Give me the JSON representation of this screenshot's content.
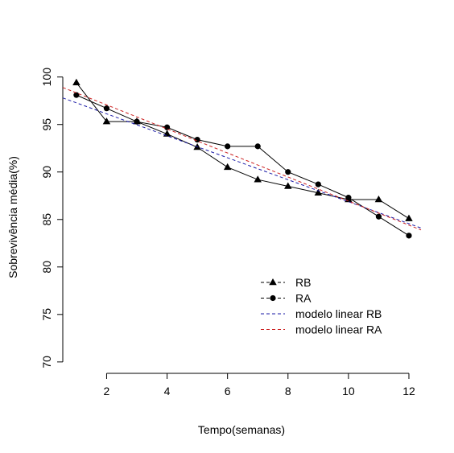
{
  "chart_data": {
    "type": "line",
    "title": "",
    "xlabel": "Tempo(semanas)",
    "ylabel": "Sobrevivência média(%)",
    "xlim": [
      0.55,
      12.4
    ],
    "ylim": [
      68.8,
      101.5
    ],
    "xticks": [
      2,
      4,
      6,
      8,
      10,
      12
    ],
    "yticks": [
      70,
      75,
      80,
      85,
      90,
      95,
      100
    ],
    "grid": false,
    "legend_position": "bottom-right",
    "series": [
      {
        "name": "RB",
        "marker": "triangle",
        "line": "solid",
        "color": "#000000",
        "x": [
          1,
          2,
          3,
          4,
          5,
          6,
          7,
          8,
          9,
          10,
          11,
          12
        ],
        "y": [
          99.4,
          95.3,
          95.3,
          94.0,
          92.6,
          90.5,
          89.2,
          88.5,
          87.8,
          87.1,
          87.1,
          85.1
        ]
      },
      {
        "name": "RA",
        "marker": "circle",
        "line": "solid",
        "color": "#000000",
        "x": [
          1,
          2,
          3,
          4,
          5,
          6,
          7,
          8,
          9,
          10,
          11,
          12
        ],
        "y": [
          98.1,
          96.7,
          95.3,
          94.7,
          93.4,
          92.7,
          92.7,
          90.0,
          88.7,
          87.3,
          85.3,
          83.3
        ]
      },
      {
        "name": "modelo linear RB",
        "line": "dashed",
        "color": "#1a1aa6",
        "x": [
          0.55,
          12.4
        ],
        "y": [
          97.8,
          84.1
        ]
      },
      {
        "name": "modelo linear RA",
        "line": "dashed",
        "color": "#cc2222",
        "x": [
          0.55,
          12.4
        ],
        "y": [
          98.9,
          83.9
        ]
      }
    ]
  }
}
